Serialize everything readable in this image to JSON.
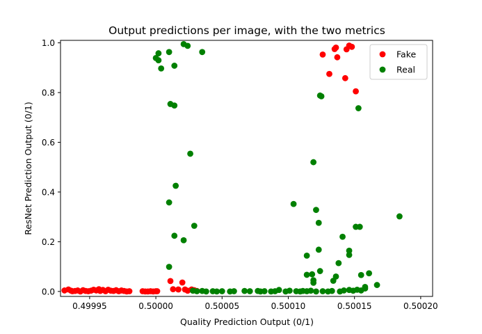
{
  "chart_data": {
    "type": "scatter",
    "title": "Output predictions per image, with the two metrics",
    "xlabel": "Quality Prediction Output (0/1)",
    "ylabel": "ResNet Prediction Output (0/1)",
    "xlim": [
      0.499928,
      0.500209
    ],
    "ylim": [
      -0.02,
      1.01
    ],
    "xticks": [
      0.49995,
      0.5,
      0.50005,
      0.5001,
      0.50015,
      0.5002
    ],
    "xtick_labels": [
      "0.49995",
      "0.50000",
      "0.50005",
      "0.50010",
      "0.50015",
      "0.50020"
    ],
    "yticks": [
      0.0,
      0.2,
      0.4,
      0.6,
      0.8,
      1.0
    ],
    "ytick_labels": [
      "0.0",
      "0.2",
      "0.4",
      "0.6",
      "0.8",
      "1.0"
    ],
    "grid": false,
    "legend": {
      "position": "top-right",
      "entries": [
        "Fake",
        "Real"
      ]
    },
    "series": [
      {
        "name": "Fake",
        "color": "#ff0000",
        "points": [
          [
            0.499931,
            0.004
          ],
          [
            0.499934,
            0.008
          ],
          [
            0.499936,
            0.003
          ],
          [
            0.499937,
            0.001
          ],
          [
            0.499939,
            0.002
          ],
          [
            0.499941,
            0.004
          ],
          [
            0.499943,
            0.0
          ],
          [
            0.499945,
            0.005
          ],
          [
            0.499947,
            0.002
          ],
          [
            0.499949,
            0.001
          ],
          [
            0.499951,
            0.003
          ],
          [
            0.499953,
            0.007
          ],
          [
            0.499955,
            0.004
          ],
          [
            0.499957,
            0.009
          ],
          [
            0.499958,
            0.002
          ],
          [
            0.49996,
            0.006
          ],
          [
            0.499962,
            0.001
          ],
          [
            0.499964,
            0.007
          ],
          [
            0.499966,
            0.003
          ],
          [
            0.499968,
            0.002
          ],
          [
            0.49997,
            0.005
          ],
          [
            0.499972,
            0.001
          ],
          [
            0.499974,
            0.004
          ],
          [
            0.499976,
            0.002
          ],
          [
            0.499978,
            0.0
          ],
          [
            0.49998,
            0.001
          ],
          [
            0.49999,
            0.001
          ],
          [
            0.499992,
            0.0
          ],
          [
            0.499994,
            0.0
          ],
          [
            0.499996,
            0.001
          ],
          [
            0.499998,
            0.0
          ],
          [
            0.5,
            0.001
          ],
          [
            0.500001,
            0.001
          ],
          [
            0.500011,
            0.042
          ],
          [
            0.500013,
            0.009
          ],
          [
            0.500017,
            0.008
          ],
          [
            0.50002,
            0.036
          ],
          [
            0.500022,
            0.008
          ],
          [
            0.500024,
            0.003
          ],
          [
            0.500027,
            0.008
          ],
          [
            0.500029,
            0.005
          ],
          [
            0.500031,
            0.002
          ],
          [
            0.500126,
            0.953
          ],
          [
            0.500131,
            0.875
          ],
          [
            0.500135,
            0.975
          ],
          [
            0.500136,
            0.981
          ],
          [
            0.500137,
            0.942
          ],
          [
            0.500143,
            0.858
          ],
          [
            0.500144,
            0.974
          ],
          [
            0.500146,
            0.989
          ],
          [
            0.500148,
            0.984
          ],
          [
            0.500151,
            0.805
          ]
        ]
      },
      {
        "name": "Real",
        "color": "#008000",
        "points": [
          [
            0.5,
            0.939
          ],
          [
            0.500002,
            0.958
          ],
          [
            0.500002,
            0.93
          ],
          [
            0.500004,
            0.897
          ],
          [
            0.50001,
            0.963
          ],
          [
            0.500014,
            0.908
          ],
          [
            0.500021,
            0.995
          ],
          [
            0.500024,
            0.988
          ],
          [
            0.500035,
            0.963
          ],
          [
            0.500011,
            0.754
          ],
          [
            0.500014,
            0.748
          ],
          [
            0.500026,
            0.554
          ],
          [
            0.500015,
            0.425
          ],
          [
            0.50001,
            0.358
          ],
          [
            0.500014,
            0.224
          ],
          [
            0.500029,
            0.264
          ],
          [
            0.500021,
            0.206
          ],
          [
            0.50001,
            0.099
          ],
          [
            0.500028,
            0.003
          ],
          [
            0.500031,
            0.001
          ],
          [
            0.500035,
            0.002
          ],
          [
            0.500038,
            0.0
          ],
          [
            0.500043,
            0.001
          ],
          [
            0.500046,
            0.0
          ],
          [
            0.50005,
            0.001
          ],
          [
            0.500056,
            0.0
          ],
          [
            0.500059,
            0.001
          ],
          [
            0.500067,
            0.002
          ],
          [
            0.500071,
            0.001
          ],
          [
            0.500077,
            0.002
          ],
          [
            0.500079,
            0.0
          ],
          [
            0.500082,
            0.001
          ],
          [
            0.500087,
            0.0
          ],
          [
            0.50009,
            0.001
          ],
          [
            0.500093,
            0.006
          ],
          [
            0.500098,
            0.0
          ],
          [
            0.500101,
            0.003
          ],
          [
            0.500106,
            0.001
          ],
          [
            0.500109,
            0.0
          ],
          [
            0.500124,
            0.788
          ],
          [
            0.500125,
            0.785
          ],
          [
            0.500153,
            0.737
          ],
          [
            0.500119,
            0.52
          ],
          [
            0.500104,
            0.352
          ],
          [
            0.500121,
            0.328
          ],
          [
            0.500123,
            0.276
          ],
          [
            0.500141,
            0.22
          ],
          [
            0.500151,
            0.26
          ],
          [
            0.500154,
            0.26
          ],
          [
            0.500184,
            0.302
          ],
          [
            0.500123,
            0.168
          ],
          [
            0.500146,
            0.164
          ],
          [
            0.500146,
            0.147
          ],
          [
            0.500114,
            0.144
          ],
          [
            0.500138,
            0.114
          ],
          [
            0.500124,
            0.082
          ],
          [
            0.500136,
            0.06
          ],
          [
            0.500114,
            0.067
          ],
          [
            0.500118,
            0.069
          ],
          [
            0.500119,
            0.045
          ],
          [
            0.500119,
            0.035
          ],
          [
            0.500155,
            0.066
          ],
          [
            0.500161,
            0.073
          ],
          [
            0.500134,
            0.043
          ],
          [
            0.500167,
            0.026
          ],
          [
            0.500158,
            0.018
          ],
          [
            0.500111,
            0.002
          ],
          [
            0.500114,
            0.001
          ],
          [
            0.500117,
            0.003
          ],
          [
            0.500121,
            0.0
          ],
          [
            0.500126,
            0.001
          ],
          [
            0.50013,
            0.0
          ],
          [
            0.500133,
            0.002
          ],
          [
            0.500139,
            0.0
          ],
          [
            0.500142,
            0.004
          ],
          [
            0.500146,
            0.006
          ],
          [
            0.500149,
            0.003
          ],
          [
            0.500152,
            0.007
          ],
          [
            0.500155,
            0.004
          ],
          [
            0.500158,
            0.012
          ]
        ]
      }
    ]
  }
}
